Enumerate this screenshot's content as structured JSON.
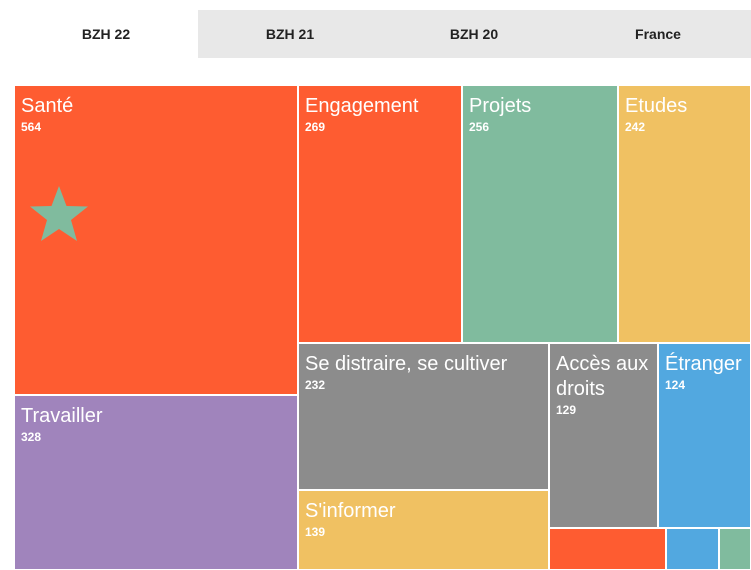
{
  "tabs": [
    "BZH 22",
    "BZH 21",
    "BZH 20",
    "France"
  ],
  "chart_data": {
    "type": "treemap",
    "categories": [
      "Santé",
      "Travailler",
      "Engagement",
      "Projets",
      "Etudes",
      "Se distraire, se cultiver",
      "S'informer",
      "Accès aux droits",
      "Étranger",
      null,
      null,
      null
    ],
    "values": [
      564,
      328,
      269,
      256,
      242,
      232,
      139,
      129,
      124,
      31,
      14,
      13
    ],
    "colors": [
      "#fe5c31",
      "#a084bc",
      "#fe5c31",
      "#80bb9e",
      "#f0c162",
      "#8c8c8c",
      "#f0c162",
      "#8c8c8c",
      "#52a8e0",
      "#fe5c31",
      "#52a8e0",
      "#80bb9e"
    ]
  }
}
